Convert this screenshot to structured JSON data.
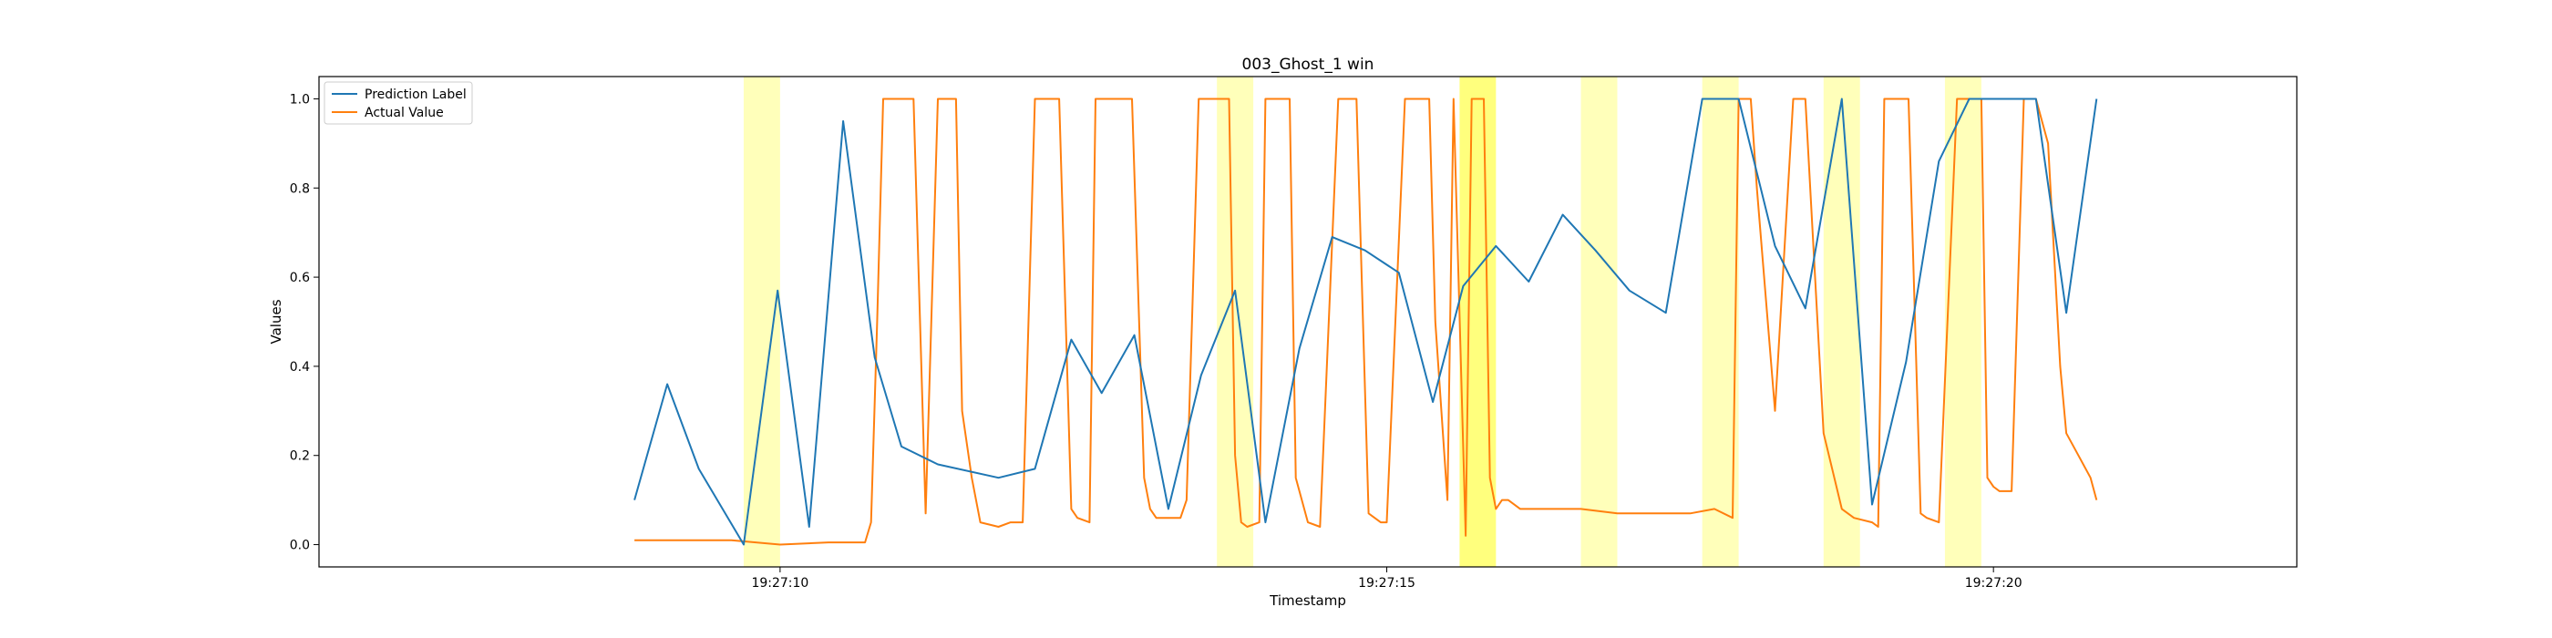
{
  "chart_data": {
    "type": "line",
    "title": "003_Ghost_1 win",
    "xlabel": "Timestamp",
    "ylabel": "Values",
    "xlim": [
      6.2,
      22.5
    ],
    "ylim": [
      -0.05,
      1.05
    ],
    "x_ticks": [
      {
        "value": 10,
        "label": "19:27:10"
      },
      {
        "value": 15,
        "label": "19:27:15"
      },
      {
        "value": 20,
        "label": "19:27:20"
      }
    ],
    "y_ticks": [
      0.0,
      0.2,
      0.4,
      0.6,
      0.8,
      1.0
    ],
    "y_tick_labels": [
      "0.0",
      "0.2",
      "0.4",
      "0.6",
      "0.8",
      "1.0"
    ],
    "grid": false,
    "legend": "upper-left",
    "highlight_color": "#ffff66",
    "highlights": [
      {
        "x0": 9.7,
        "x1": 10.0,
        "opacity": 0.45
      },
      {
        "x0": 13.6,
        "x1": 13.9,
        "opacity": 0.45
      },
      {
        "x0": 15.6,
        "x1": 15.9,
        "opacity": 0.85
      },
      {
        "x0": 16.6,
        "x1": 16.9,
        "opacity": 0.45
      },
      {
        "x0": 17.6,
        "x1": 17.9,
        "opacity": 0.45
      },
      {
        "x0": 18.6,
        "x1": 18.9,
        "opacity": 0.45
      },
      {
        "x0": 19.6,
        "x1": 19.9,
        "opacity": 0.45
      }
    ],
    "series": [
      {
        "name": "Prediction Label",
        "color": "#1f77b4",
        "x": [
          8.8,
          9.07,
          9.33,
          9.7,
          9.98,
          10.24,
          10.52,
          10.78,
          11.0,
          11.3,
          11.8,
          12.1,
          12.4,
          12.65,
          12.92,
          13.2,
          13.47,
          13.75,
          14.0,
          14.28,
          14.55,
          14.82,
          15.1,
          15.38,
          15.63,
          15.9,
          16.17,
          16.45,
          16.72,
          17.0,
          17.3,
          17.6,
          17.9,
          18.2,
          18.45,
          18.75,
          19.0,
          19.28,
          19.55,
          19.8,
          20.1,
          20.35,
          20.6,
          20.85
        ],
        "values": [
          0.1,
          0.36,
          0.17,
          0.0,
          0.57,
          0.04,
          0.95,
          0.42,
          0.22,
          0.18,
          0.15,
          0.17,
          0.46,
          0.34,
          0.47,
          0.08,
          0.38,
          0.57,
          0.05,
          0.44,
          0.69,
          0.66,
          0.61,
          0.32,
          0.58,
          0.67,
          0.59,
          0.74,
          0.66,
          0.57,
          0.52,
          1.0,
          1.0,
          0.67,
          0.53,
          1.0,
          0.09,
          0.41,
          0.86,
          1.0,
          1.0,
          1.0,
          0.52,
          1.0
        ]
      },
      {
        "name": "Actual Value",
        "color": "#ff7f0e",
        "x": [
          8.8,
          9.2,
          9.6,
          10.0,
          10.4,
          10.7,
          10.75,
          10.8,
          10.85,
          11.0,
          11.1,
          11.2,
          11.3,
          11.37,
          11.45,
          11.5,
          11.58,
          11.65,
          11.8,
          11.9,
          12.0,
          12.1,
          12.2,
          12.3,
          12.4,
          12.45,
          12.55,
          12.6,
          12.75,
          12.9,
          13.0,
          13.05,
          13.1,
          13.2,
          13.3,
          13.35,
          13.45,
          13.55,
          13.7,
          13.75,
          13.8,
          13.85,
          13.95,
          14.0,
          14.1,
          14.2,
          14.25,
          14.35,
          14.45,
          14.6,
          14.65,
          14.75,
          14.85,
          14.95,
          15.0,
          15.15,
          15.25,
          15.35,
          15.4,
          15.5,
          15.55,
          15.65,
          15.7,
          15.75,
          15.8,
          15.85,
          15.9,
          15.95,
          16.0,
          16.1,
          16.3,
          16.6,
          16.9,
          17.2,
          17.5,
          17.7,
          17.85,
          17.9,
          18.0,
          18.05,
          18.2,
          18.35,
          18.45,
          18.6,
          18.75,
          18.85,
          19.0,
          19.05,
          19.1,
          19.2,
          19.3,
          19.4,
          19.45,
          19.55,
          19.7,
          19.8,
          19.9,
          19.95,
          20.0,
          20.05,
          20.15,
          20.25,
          20.35,
          20.45,
          20.55,
          20.6,
          20.7,
          20.8,
          20.85
        ],
        "values": [
          0.01,
          0.01,
          0.01,
          0.0,
          0.005,
          0.005,
          0.05,
          0.5,
          1.0,
          1.0,
          1.0,
          0.07,
          1.0,
          1.0,
          1.0,
          0.3,
          0.15,
          0.05,
          0.04,
          0.05,
          0.05,
          1.0,
          1.0,
          1.0,
          0.08,
          0.06,
          0.05,
          1.0,
          1.0,
          1.0,
          0.15,
          0.08,
          0.06,
          0.06,
          0.06,
          0.1,
          1.0,
          1.0,
          1.0,
          0.2,
          0.05,
          0.04,
          0.05,
          1.0,
          1.0,
          1.0,
          0.15,
          0.05,
          0.04,
          1.0,
          1.0,
          1.0,
          0.07,
          0.05,
          0.05,
          1.0,
          1.0,
          1.0,
          0.5,
          0.1,
          1.0,
          0.02,
          1.0,
          1.0,
          1.0,
          0.15,
          0.08,
          0.1,
          0.1,
          0.08,
          0.08,
          0.08,
          0.07,
          0.07,
          0.07,
          0.08,
          0.06,
          1.0,
          1.0,
          0.8,
          0.3,
          1.0,
          1.0,
          0.25,
          0.08,
          0.06,
          0.05,
          0.04,
          1.0,
          1.0,
          1.0,
          0.07,
          0.06,
          0.05,
          1.0,
          1.0,
          1.0,
          0.15,
          0.13,
          0.12,
          0.12,
          1.0,
          1.0,
          0.9,
          0.4,
          0.25,
          0.2,
          0.15,
          0.1
        ]
      }
    ]
  }
}
